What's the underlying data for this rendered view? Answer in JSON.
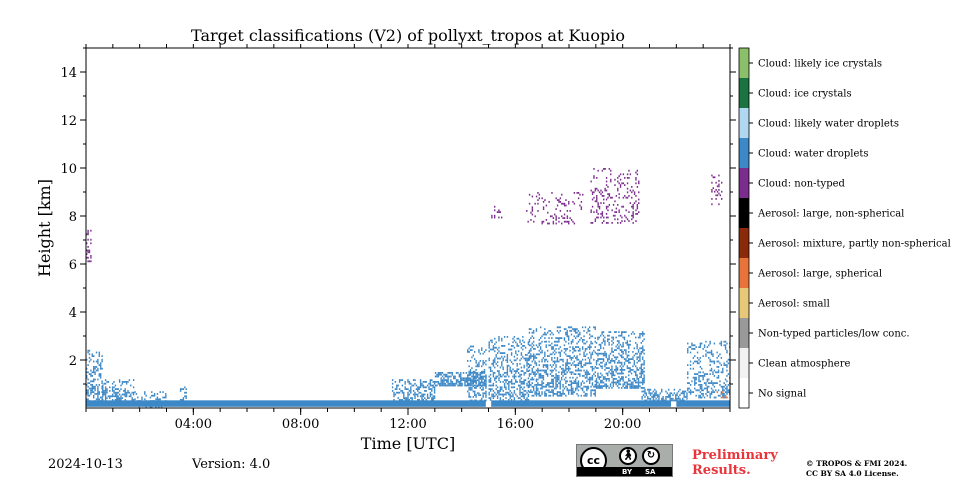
{
  "chart_data": {
    "type": "heatmap",
    "title": "Target classifications (V2) of pollyxt_tropos at Kuopio",
    "xlabel": "Time [UTC]",
    "ylabel": "Height [km]",
    "xlim_hours": [
      0,
      24
    ],
    "ylim_km": [
      0,
      15
    ],
    "x_ticks": [
      {
        "hour": 4,
        "label": "04:00"
      },
      {
        "hour": 8,
        "label": "08:00"
      },
      {
        "hour": 12,
        "label": "12:00"
      },
      {
        "hour": 16,
        "label": "16:00"
      },
      {
        "hour": 20,
        "label": "20:00"
      }
    ],
    "y_ticks": [
      {
        "km": 2,
        "label": "2"
      },
      {
        "km": 4,
        "label": "4"
      },
      {
        "km": 6,
        "label": "6"
      },
      {
        "km": 8,
        "label": "8"
      },
      {
        "km": 10,
        "label": "10"
      },
      {
        "km": 12,
        "label": "12"
      },
      {
        "km": 14,
        "label": "14"
      }
    ],
    "classes": [
      {
        "name": "No signal",
        "color": "#ffffff"
      },
      {
        "name": "Clean atmosphere",
        "color": "#f2f2f2"
      },
      {
        "name": "Non-typed particles/low conc.",
        "color": "#999999"
      },
      {
        "name": "Aerosol: small",
        "color": "#e6c878"
      },
      {
        "name": "Aerosol: large, spherical",
        "color": "#e8743b"
      },
      {
        "name": "Aerosol: mixture, partly non-spherical",
        "color": "#8a2a0a"
      },
      {
        "name": "Aerosol: large, non-spherical",
        "color": "#000000"
      },
      {
        "name": "Cloud: non-typed",
        "color": "#7b2d8e"
      },
      {
        "name": "Cloud: water droplets",
        "color": "#3d88c6"
      },
      {
        "name": "Cloud: likely water droplets",
        "color": "#b0d8f2"
      },
      {
        "name": "Cloud: ice crystals",
        "color": "#1a7340"
      },
      {
        "name": "Cloud: likely ice crystals",
        "color": "#8cbf6a"
      }
    ],
    "regions": [
      {
        "class": "Cloud: water droplets",
        "t": [
          0.0,
          14.9
        ],
        "h": [
          0.05,
          0.32
        ],
        "density": 1.0
      },
      {
        "class": "Cloud: water droplets",
        "t": [
          15.1,
          21.8
        ],
        "h": [
          0.05,
          0.32
        ],
        "density": 1.0
      },
      {
        "class": "Cloud: water droplets",
        "t": [
          22.0,
          24.0
        ],
        "h": [
          0.05,
          0.32
        ],
        "density": 1.0
      },
      {
        "class": "Cloud: water droplets",
        "t": [
          0.0,
          0.6
        ],
        "h": [
          0.3,
          2.5
        ],
        "density": 0.45
      },
      {
        "class": "Cloud: water droplets",
        "t": [
          0.6,
          1.8
        ],
        "h": [
          0.3,
          1.2
        ],
        "density": 0.5
      },
      {
        "class": "Cloud: water droplets",
        "t": [
          1.8,
          3.0
        ],
        "h": [
          0.05,
          0.7
        ],
        "density": 0.35
      },
      {
        "class": "Cloud: water droplets",
        "t": [
          3.5,
          3.8
        ],
        "h": [
          0.1,
          0.9
        ],
        "density": 0.5
      },
      {
        "class": "Cloud: water droplets",
        "t": [
          11.4,
          13.0
        ],
        "h": [
          0.3,
          1.2
        ],
        "density": 0.5
      },
      {
        "class": "Cloud: water droplets",
        "t": [
          13.0,
          14.9
        ],
        "h": [
          0.9,
          1.5
        ],
        "density": 0.8
      },
      {
        "class": "Cloud: water droplets",
        "t": [
          14.2,
          14.9
        ],
        "h": [
          0.3,
          2.6
        ],
        "density": 0.35
      },
      {
        "class": "Cloud: water droplets",
        "t": [
          15.0,
          16.5
        ],
        "h": [
          0.3,
          3.0
        ],
        "density": 0.45
      },
      {
        "class": "Cloud: water droplets",
        "t": [
          16.5,
          19.0
        ],
        "h": [
          0.5,
          3.4
        ],
        "density": 0.4
      },
      {
        "class": "Cloud: water droplets",
        "t": [
          19.0,
          20.8
        ],
        "h": [
          0.8,
          3.2
        ],
        "density": 0.45
      },
      {
        "class": "Cloud: water droplets",
        "t": [
          20.7,
          22.4
        ],
        "h": [
          0.3,
          0.8
        ],
        "density": 0.6
      },
      {
        "class": "Cloud: water droplets",
        "t": [
          22.4,
          24.0
        ],
        "h": [
          0.4,
          2.8
        ],
        "density": 0.3
      },
      {
        "class": "Cloud: non-typed",
        "t": [
          0.0,
          0.2
        ],
        "h": [
          6.1,
          7.5
        ],
        "density": 0.4
      },
      {
        "class": "Cloud: non-typed",
        "t": [
          15.1,
          15.5
        ],
        "h": [
          7.9,
          8.5
        ],
        "density": 0.35
      },
      {
        "class": "Cloud: non-typed",
        "t": [
          16.4,
          18.5
        ],
        "h": [
          7.7,
          9.0
        ],
        "density": 0.18
      },
      {
        "class": "Cloud: non-typed",
        "t": [
          18.8,
          20.6
        ],
        "h": [
          7.7,
          10.0
        ],
        "density": 0.18
      },
      {
        "class": "Cloud: non-typed",
        "t": [
          23.3,
          23.7
        ],
        "h": [
          8.5,
          9.8
        ],
        "density": 0.3
      },
      {
        "class": "Aerosol: large, spherical",
        "t": [
          23.5,
          24.0
        ],
        "h": [
          0.4,
          0.7
        ],
        "density": 0.2
      }
    ]
  },
  "footer": {
    "date": "2024-10-13",
    "version": "Version: 4.0",
    "preliminary_line1": "Preliminary",
    "preliminary_line2": "Results.",
    "copyright_line1": "© TROPOS & FMI 2024.",
    "copyright_line2": "CC BY SA 4.0 License.",
    "cc_badge": {
      "cc": "cc",
      "by": "BY",
      "sa": "SA",
      "by_icon": "person-icon",
      "sa_icon": "share-alike-icon"
    }
  }
}
